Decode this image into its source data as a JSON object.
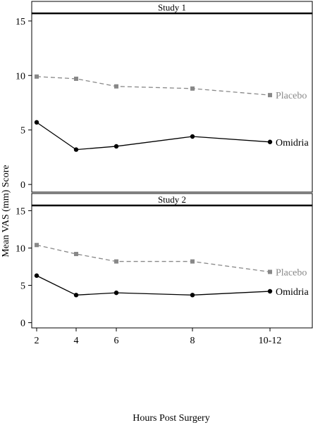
{
  "chart_data": {
    "type": "line",
    "ylabel": "Mean VAS (mm) Score",
    "xlabel": "Hours Post Surgery",
    "categories": [
      "2",
      "4",
      "6",
      "8",
      "10-12"
    ],
    "ylim": [
      -0.7,
      15.7
    ],
    "yticks": [
      0,
      5,
      10,
      15
    ],
    "grid": false,
    "panels": [
      {
        "title": "Study 1",
        "series": [
          {
            "name": "Placebo",
            "color": "#888888",
            "style": "dashed",
            "marker": "square",
            "values": [
              9.9,
              9.7,
              9.0,
              8.8,
              8.2
            ]
          },
          {
            "name": "Omidria",
            "color": "#000000",
            "style": "solid",
            "marker": "circle",
            "values": [
              5.7,
              3.2,
              3.5,
              4.4,
              3.9
            ]
          }
        ]
      },
      {
        "title": "Study 2",
        "series": [
          {
            "name": "Placebo",
            "color": "#888888",
            "style": "dashed",
            "marker": "square",
            "values": [
              10.4,
              9.2,
              8.2,
              8.2,
              6.8
            ]
          },
          {
            "name": "Omidria",
            "color": "#000000",
            "style": "solid",
            "marker": "circle",
            "values": [
              6.3,
              3.7,
              4.0,
              3.7,
              4.2
            ]
          }
        ]
      }
    ]
  }
}
